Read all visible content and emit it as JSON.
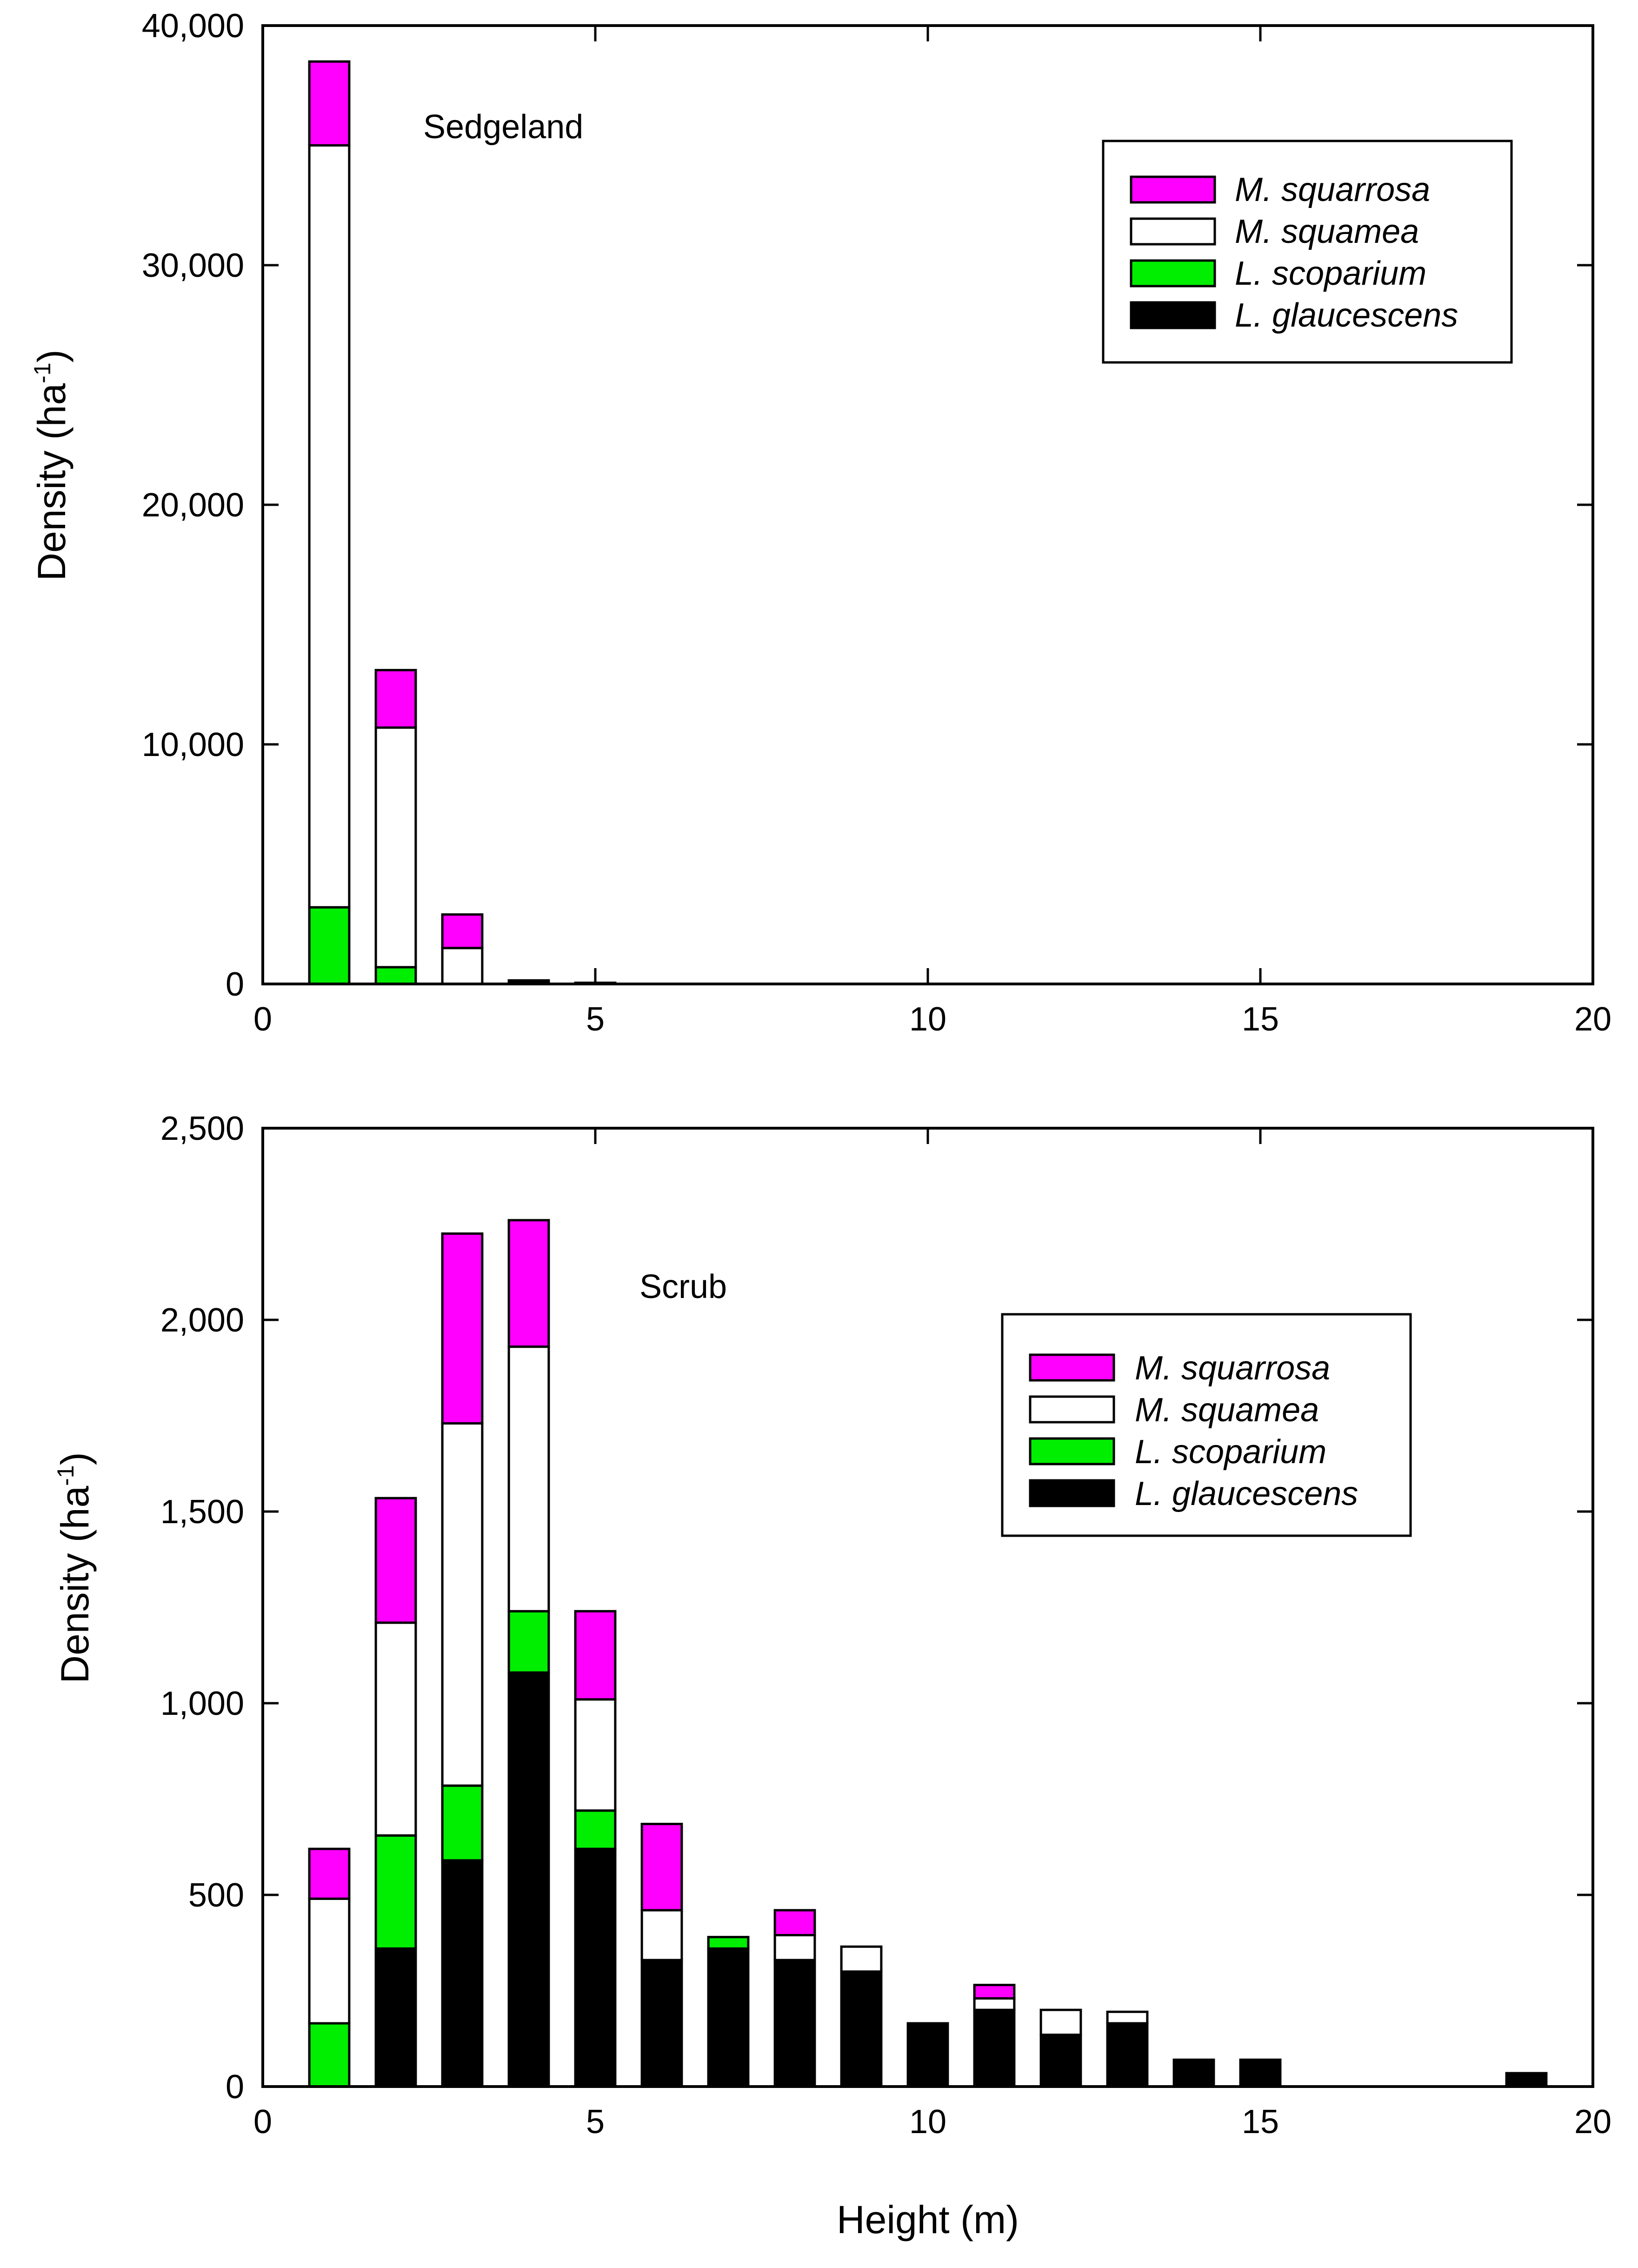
{
  "chart_data": [
    {
      "type": "bar",
      "stacked": true,
      "title": "Sedgeland",
      "xlabel": "",
      "ylabel": "Density (ha",
      "ylabel_sup": "-1",
      "ylabel_close": ")",
      "xlim": [
        0,
        20
      ],
      "ylim": [
        0,
        40000
      ],
      "xticks": [
        0,
        5,
        10,
        15,
        20
      ],
      "xtick_labels": [
        "0",
        "5",
        "10",
        "15",
        "20"
      ],
      "yticks": [
        0,
        10000,
        20000,
        30000,
        40000
      ],
      "ytick_labels": [
        "0",
        "10,000",
        "20,000",
        "30,000",
        "40,000"
      ],
      "legend_position": "top-right",
      "legend_order": [
        "M. squarrosa",
        "M. squamea",
        "L. scoparium",
        "L. glaucescens"
      ],
      "categories": [
        1,
        2,
        3,
        4,
        5
      ],
      "series": [
        {
          "name": "L. glaucescens",
          "color": "#000000",
          "values": [
            0,
            0,
            0,
            150,
            50
          ]
        },
        {
          "name": "L. scoparium",
          "color": "#00ee00",
          "values": [
            3200,
            700,
            0,
            0,
            0
          ]
        },
        {
          "name": "M. squamea",
          "color": "#ffffff",
          "values": [
            31800,
            10000,
            1500,
            0,
            0
          ]
        },
        {
          "name": "M. squarrosa",
          "color": "#ff00ff",
          "values": [
            3500,
            2400,
            1400,
            0,
            0
          ]
        }
      ]
    },
    {
      "type": "bar",
      "stacked": true,
      "title": "Scrub",
      "xlabel": "Height (m)",
      "ylabel": "Density (ha",
      "ylabel_sup": "-1",
      "ylabel_close": ")",
      "xlim": [
        0,
        20
      ],
      "ylim": [
        0,
        2500
      ],
      "xticks": [
        0,
        5,
        10,
        15,
        20
      ],
      "xtick_labels": [
        "0",
        "5",
        "10",
        "15",
        "20"
      ],
      "yticks": [
        0,
        500,
        1000,
        1500,
        2000,
        2500
      ],
      "ytick_labels": [
        "0",
        "500",
        "1,000",
        "1,500",
        "2,000",
        "2,500"
      ],
      "legend_position": "top-right",
      "legend_order": [
        "M. squarrosa",
        "M. squamea",
        "L. scoparium",
        "L. glaucescens"
      ],
      "categories": [
        1,
        2,
        3,
        4,
        5,
        6,
        7,
        8,
        9,
        10,
        11,
        12,
        13,
        14,
        15,
        19
      ],
      "series": [
        {
          "name": "L. glaucescens",
          "color": "#000000",
          "values": [
            0,
            360,
            590,
            1080,
            620,
            330,
            360,
            330,
            300,
            165,
            200,
            135,
            165,
            70,
            70,
            35
          ]
        },
        {
          "name": "L. scoparium",
          "color": "#00ee00",
          "values": [
            165,
            295,
            195,
            160,
            100,
            0,
            30,
            0,
            0,
            0,
            0,
            0,
            0,
            0,
            0,
            0
          ]
        },
        {
          "name": "M. squamea",
          "color": "#ffffff",
          "values": [
            325,
            555,
            945,
            690,
            290,
            130,
            0,
            65,
            65,
            0,
            30,
            65,
            30,
            0,
            0,
            0
          ]
        },
        {
          "name": "M. squarrosa",
          "color": "#ff00ff",
          "values": [
            130,
            325,
            495,
            330,
            230,
            225,
            0,
            65,
            0,
            0,
            35,
            0,
            0,
            0,
            0,
            0
          ]
        }
      ]
    }
  ]
}
